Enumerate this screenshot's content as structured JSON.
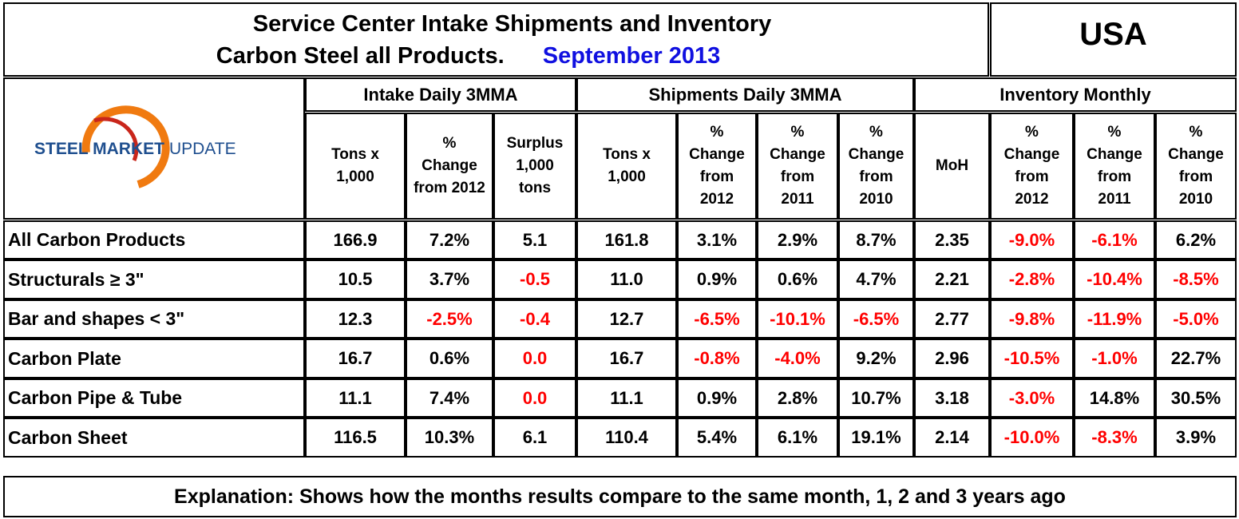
{
  "header": {
    "title_line1": "Service Center Intake Shipments and Inventory",
    "title_line2": "Carbon Steel all Products.",
    "date": "September 2013",
    "region": "USA"
  },
  "logo": {
    "bold": "STEEL MARKET",
    "regular": "UPDATE"
  },
  "table": {
    "groups": [
      "Intake Daily 3MMA",
      "Shipments Daily 3MMA",
      "Inventory Monthly"
    ],
    "columns": [
      [
        "Tons x",
        "1,000"
      ],
      [
        "%",
        "Change",
        "from 2012"
      ],
      [
        "Surplus",
        "1,000",
        "tons"
      ],
      [
        "Tons x",
        "1,000"
      ],
      [
        "%",
        "Change",
        "from",
        "2012"
      ],
      [
        "%",
        "Change",
        "from",
        "2011"
      ],
      [
        "%",
        "Change",
        "from",
        "2010"
      ],
      [
        "MoH"
      ],
      [
        "%",
        "Change",
        "from",
        "2012"
      ],
      [
        "%",
        "Change",
        "from",
        "2011"
      ],
      [
        "%",
        "Change",
        "from",
        "2010"
      ]
    ],
    "rows": [
      {
        "label": "All Carbon Products",
        "cells": [
          "166.9",
          "7.2%",
          "5.1",
          "161.8",
          "3.1%",
          "2.9%",
          "8.7%",
          "2.35",
          "-9.0%",
          "-6.1%",
          "6.2%"
        ],
        "colors": [
          "black",
          "black",
          "black",
          "black",
          "black",
          "black",
          "black",
          "black",
          "red",
          "red",
          "black"
        ]
      },
      {
        "label": "Structurals ≥ 3\"",
        "cells": [
          "10.5",
          "3.7%",
          "-0.5",
          "11.0",
          "0.9%",
          "0.6%",
          "4.7%",
          "2.21",
          "-2.8%",
          "-10.4%",
          "-8.5%"
        ],
        "colors": [
          "black",
          "black",
          "red",
          "black",
          "black",
          "black",
          "black",
          "black",
          "red",
          "red",
          "red"
        ]
      },
      {
        "label": "Bar and shapes < 3\"",
        "cells": [
          "12.3",
          "-2.5%",
          "-0.4",
          "12.7",
          "-6.5%",
          "-10.1%",
          "-6.5%",
          "2.77",
          "-9.8%",
          "-11.9%",
          "-5.0%"
        ],
        "colors": [
          "black",
          "red",
          "red",
          "black",
          "red",
          "red",
          "red",
          "black",
          "red",
          "red",
          "red"
        ]
      },
      {
        "label": "Carbon Plate",
        "cells": [
          "16.7",
          "0.6%",
          "0.0",
          "16.7",
          "-0.8%",
          "-4.0%",
          "9.2%",
          "2.96",
          "-10.5%",
          "-1.0%",
          "22.7%"
        ],
        "colors": [
          "black",
          "black",
          "red",
          "black",
          "red",
          "red",
          "black",
          "black",
          "red",
          "red",
          "black"
        ]
      },
      {
        "label": "Carbon Pipe & Tube",
        "cells": [
          "11.1",
          "7.4%",
          "0.0",
          "11.1",
          "0.9%",
          "2.8%",
          "10.7%",
          "3.18",
          "-3.0%",
          "14.8%",
          "30.5%"
        ],
        "colors": [
          "black",
          "black",
          "red",
          "black",
          "black",
          "black",
          "black",
          "black",
          "red",
          "black",
          "black"
        ]
      },
      {
        "label": "Carbon Sheet",
        "cells": [
          "116.5",
          "10.3%",
          "6.1",
          "110.4",
          "5.4%",
          "6.1%",
          "19.1%",
          "2.14",
          "-10.0%",
          "-8.3%",
          "3.9%"
        ],
        "colors": [
          "black",
          "black",
          "black",
          "black",
          "black",
          "black",
          "black",
          "black",
          "red",
          "red",
          "black"
        ]
      }
    ]
  },
  "footer": {
    "explanation": "Explanation: Shows how the months results compare to the same month, 1, 2 and 3 years ago"
  }
}
